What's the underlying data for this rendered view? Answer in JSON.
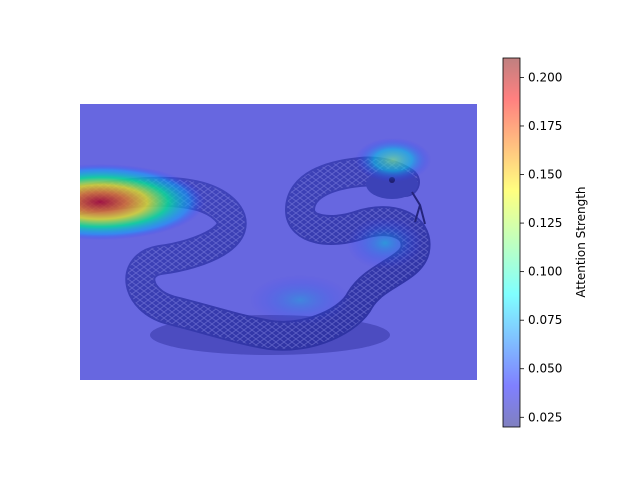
{
  "chart_data": {
    "type": "heatmap",
    "title": "",
    "xlabel": "",
    "ylabel": "",
    "description_free": true,
    "heatmap_overlay": {
      "colormap": "jet",
      "alpha": 0.5,
      "hotspots": [
        {
          "cx": 0.06,
          "cy": 0.35,
          "value": 0.2
        },
        {
          "cx": 0.22,
          "cy": 0.35,
          "value": 0.14
        },
        {
          "cx": 0.81,
          "cy": 0.22,
          "value": 0.11
        },
        {
          "cx": 0.8,
          "cy": 0.52,
          "value": 0.09
        },
        {
          "cx": 0.55,
          "cy": 0.7,
          "value": 0.08
        }
      ],
      "background_value": 0.03
    },
    "colorbar": {
      "label": "Attention Strength",
      "range": [
        0.02,
        0.21
      ],
      "colormap": "jet",
      "alpha": 0.5,
      "ticks": [
        0.025,
        0.05,
        0.075,
        0.1,
        0.125,
        0.15,
        0.175,
        0.2
      ],
      "tick_labels": [
        "0.025",
        "0.050",
        "0.075",
        "0.100",
        "0.125",
        "0.150",
        "0.175",
        "0.200"
      ]
    }
  }
}
